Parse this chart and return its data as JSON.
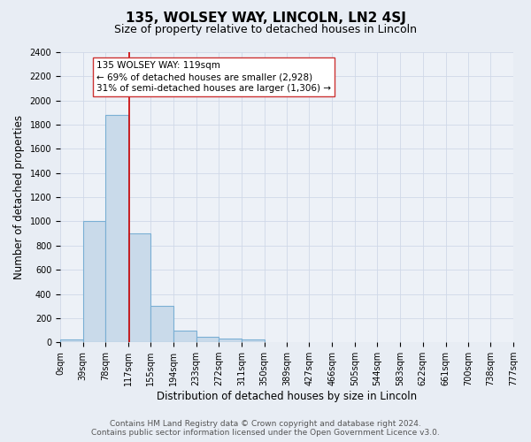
{
  "title": "135, WOLSEY WAY, LINCOLN, LN2 4SJ",
  "subtitle": "Size of property relative to detached houses in Lincoln",
  "xlabel": "Distribution of detached houses by size in Lincoln",
  "ylabel": "Number of detached properties",
  "bin_edges": [
    0,
    39,
    78,
    117,
    155,
    194,
    233,
    272,
    311,
    350,
    389,
    427,
    466,
    505,
    544,
    583,
    622,
    661,
    700,
    738,
    777
  ],
  "bin_labels": [
    "0sqm",
    "39sqm",
    "78sqm",
    "117sqm",
    "155sqm",
    "194sqm",
    "233sqm",
    "272sqm",
    "311sqm",
    "350sqm",
    "389sqm",
    "427sqm",
    "466sqm",
    "505sqm",
    "544sqm",
    "583sqm",
    "622sqm",
    "661sqm",
    "700sqm",
    "738sqm",
    "777sqm"
  ],
  "bar_heights": [
    20,
    1000,
    1880,
    900,
    300,
    100,
    45,
    30,
    20,
    0,
    0,
    0,
    0,
    0,
    0,
    0,
    0,
    0,
    0,
    0
  ],
  "bar_color": "#c9daea",
  "bar_edge_color": "#7aafd4",
  "vline_x": 119,
  "vline_color": "#cc0000",
  "ylim": [
    0,
    2400
  ],
  "yticks": [
    0,
    200,
    400,
    600,
    800,
    1000,
    1200,
    1400,
    1600,
    1800,
    2000,
    2200,
    2400
  ],
  "annotation_title": "135 WOLSEY WAY: 119sqm",
  "annotation_line1": "← 69% of detached houses are smaller (2,928)",
  "annotation_line2": "31% of semi-detached houses are larger (1,306) →",
  "footer_line1": "Contains HM Land Registry data © Crown copyright and database right 2024.",
  "footer_line2": "Contains public sector information licensed under the Open Government Licence v3.0.",
  "background_color": "#e8edf4",
  "plot_bg_color": "#edf1f7",
  "grid_color": "#d0d8e8",
  "title_fontsize": 11,
  "subtitle_fontsize": 9,
  "axis_label_fontsize": 8.5,
  "tick_fontsize": 7,
  "annotation_fontsize": 7.5,
  "footer_fontsize": 6.5
}
